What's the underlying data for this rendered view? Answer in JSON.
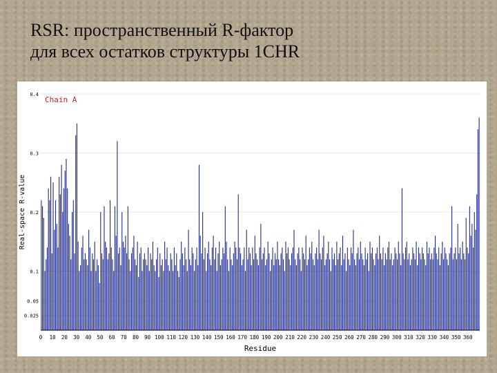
{
  "slide": {
    "title_line1": "RSR: пространственный R-фактор",
    "title_line2": "для всех остатков структуры 1CHR"
  },
  "colors": {
    "background": "#b3a68f",
    "bar": "#1e2a8c",
    "series_label": "#cc2222",
    "axis": "#000000"
  },
  "chart_data": {
    "type": "bar",
    "series": [
      {
        "name": "Chain A"
      }
    ],
    "ylabel": "Real-space R-value",
    "xlabel": "Residue",
    "ylim": [
      0,
      0.4
    ],
    "ytick_labels": [
      "0.025",
      "0.05",
      "0.1",
      "0.2",
      "0.3",
      "0.4"
    ],
    "ytick_values": [
      0.025,
      0.05,
      0.1,
      0.2,
      0.3,
      0.4
    ],
    "xtick_labels": [
      "0",
      "10",
      "20",
      "30",
      "40",
      "50",
      "60",
      "70",
      "80",
      "90",
      "100",
      "110",
      "120",
      "130",
      "140",
      "150",
      "160",
      "170",
      "180",
      "190",
      "200",
      "210",
      "220",
      "230",
      "240",
      "250",
      "260",
      "270",
      "280",
      "290",
      "300",
      "310",
      "320",
      "330",
      "340",
      "350",
      "360"
    ],
    "x_range": [
      0,
      370
    ],
    "values": [
      0.22,
      0.21,
      0.19,
      0.1,
      0.12,
      0.14,
      0.24,
      0.22,
      0.26,
      0.13,
      0.25,
      0.17,
      0.22,
      0.18,
      0.14,
      0.26,
      0.23,
      0.28,
      0.2,
      0.24,
      0.27,
      0.29,
      0.24,
      0.18,
      0.16,
      0.12,
      0.2,
      0.22,
      0.13,
      0.33,
      0.35,
      0.15,
      0.1,
      0.11,
      0.14,
      0.16,
      0.12,
      0.13,
      0.12,
      0.11,
      0.17,
      0.14,
      0.1,
      0.13,
      0.12,
      0.15,
      0.1,
      0.12,
      0.11,
      0.08,
      0.2,
      0.13,
      0.12,
      0.21,
      0.15,
      0.14,
      0.12,
      0.13,
      0.22,
      0.14,
      0.12,
      0.1,
      0.21,
      0.16,
      0.32,
      0.13,
      0.14,
      0.11,
      0.2,
      0.15,
      0.14,
      0.16,
      0.13,
      0.21,
      0.12,
      0.1,
      0.13,
      0.14,
      0.16,
      0.12,
      0.11,
      0.15,
      0.09,
      0.13,
      0.14,
      0.1,
      0.12,
      0.13,
      0.12,
      0.11,
      0.14,
      0.1,
      0.13,
      0.12,
      0.15,
      0.11,
      0.1,
      0.12,
      0.14,
      0.09,
      0.13,
      0.11,
      0.12,
      0.1,
      0.15,
      0.12,
      0.14,
      0.11,
      0.1,
      0.13,
      0.12,
      0.1,
      0.14,
      0.11,
      0.13,
      0.1,
      0.09,
      0.12,
      0.15,
      0.13,
      0.11,
      0.14,
      0.12,
      0.1,
      0.17,
      0.12,
      0.11,
      0.14,
      0.13,
      0.1,
      0.12,
      0.14,
      0.11,
      0.28,
      0.16,
      0.13,
      0.2,
      0.12,
      0.14,
      0.1,
      0.13,
      0.15,
      0.12,
      0.11,
      0.14,
      0.16,
      0.12,
      0.14,
      0.1,
      0.13,
      0.15,
      0.11,
      0.12,
      0.14,
      0.13,
      0.21,
      0.15,
      0.12,
      0.1,
      0.14,
      0.12,
      0.11,
      0.13,
      0.15,
      0.14,
      0.12,
      0.23,
      0.14,
      0.13,
      0.11,
      0.12,
      0.14,
      0.1,
      0.17,
      0.12,
      0.14,
      0.13,
      0.11,
      0.14,
      0.12,
      0.16,
      0.13,
      0.12,
      0.11,
      0.14,
      0.18,
      0.12,
      0.13,
      0.14,
      0.11,
      0.12,
      0.15,
      0.13,
      0.1,
      0.12,
      0.14,
      0.11,
      0.13,
      0.12,
      0.15,
      0.12,
      0.11,
      0.13,
      0.14,
      0.12,
      0.1,
      0.15,
      0.13,
      0.14,
      0.12,
      0.11,
      0.13,
      0.14,
      0.17,
      0.12,
      0.11,
      0.13,
      0.14,
      0.12,
      0.1,
      0.14,
      0.13,
      0.12,
      0.16,
      0.11,
      0.12,
      0.14,
      0.13,
      0.15,
      0.12,
      0.11,
      0.13,
      0.14,
      0.12,
      0.17,
      0.13,
      0.12,
      0.14,
      0.16,
      0.11,
      0.12,
      0.13,
      0.15,
      0.12,
      0.1,
      0.14,
      0.12,
      0.13,
      0.11,
      0.15,
      0.12,
      0.13,
      0.14,
      0.11,
      0.16,
      0.12,
      0.13,
      0.1,
      0.14,
      0.12,
      0.11,
      0.14,
      0.13,
      0.17,
      0.12,
      0.11,
      0.13,
      0.14,
      0.12,
      0.15,
      0.13,
      0.12,
      0.11,
      0.14,
      0.12,
      0.13,
      0.1,
      0.15,
      0.13,
      0.14,
      0.12,
      0.11,
      0.13,
      0.14,
      0.12,
      0.16,
      0.13,
      0.12,
      0.14,
      0.11,
      0.13,
      0.12,
      0.14,
      0.15,
      0.12,
      0.13,
      0.11,
      0.12,
      0.14,
      0.13,
      0.12,
      0.15,
      0.13,
      0.11,
      0.24,
      0.13,
      0.12,
      0.14,
      0.15,
      0.12,
      0.13,
      0.11,
      0.12,
      0.14,
      0.13,
      0.12,
      0.15,
      0.11,
      0.14,
      0.13,
      0.12,
      0.14,
      0.13,
      0.12,
      0.11,
      0.15,
      0.13,
      0.14,
      0.12,
      0.13,
      0.12,
      0.14,
      0.16,
      0.13,
      0.12,
      0.14,
      0.11,
      0.13,
      0.15,
      0.12,
      0.14,
      0.13,
      0.12,
      0.11,
      0.13,
      0.14,
      0.21,
      0.12,
      0.13,
      0.14,
      0.12,
      0.18,
      0.13,
      0.14,
      0.12,
      0.15,
      0.13,
      0.12,
      0.19,
      0.14,
      0.13,
      0.21,
      0.16,
      0.18,
      0.14,
      0.2,
      0.17,
      0.23,
      0.34,
      0.36
    ]
  }
}
